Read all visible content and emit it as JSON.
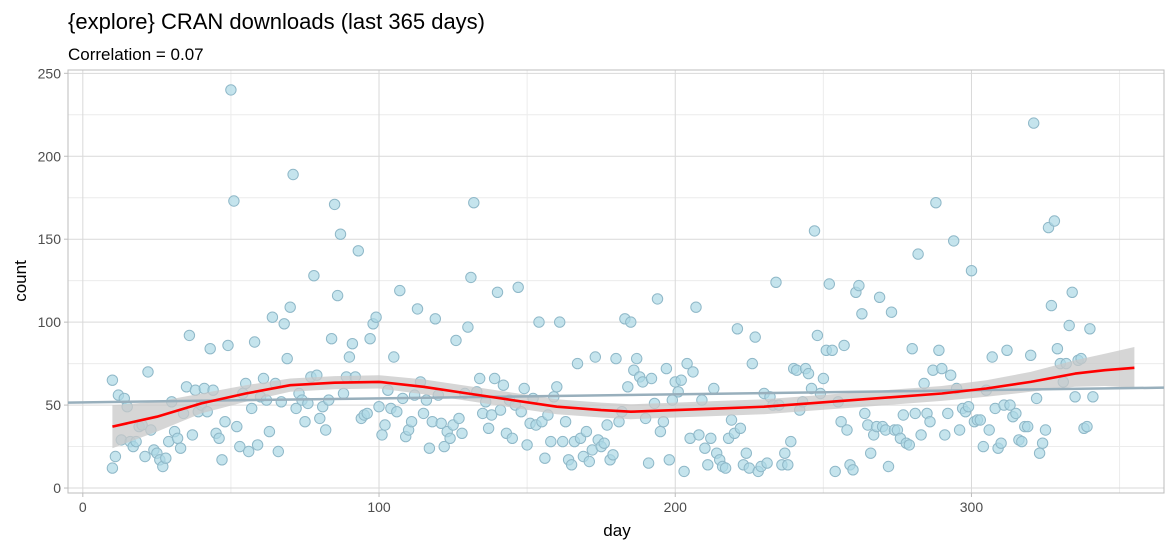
{
  "colors": {
    "background": "#ffffff",
    "grid_major": "#d9d9d9",
    "grid_minor": "#ececec",
    "point_fill": "#add8e6",
    "point_stroke": "#8fb8c8",
    "smooth_line": "#ff0000",
    "confidence_band": "#c8c8c8",
    "regression_line": "#98afbc",
    "panel_border": "#bdbdbd"
  },
  "chart_data": {
    "type": "scatter",
    "title": "{explore} CRAN downloads (last 365 days)",
    "subtitle": "Correlation = 0.07",
    "xlabel": "day",
    "ylabel": "count",
    "xlim": [
      -5,
      365
    ],
    "ylim": [
      -3,
      252
    ],
    "xticks": [
      0,
      100,
      200,
      300
    ],
    "yticks": [
      0,
      50,
      100,
      150,
      200,
      250
    ],
    "grid": true,
    "legend": "none",
    "points": [
      [
        10,
        65
      ],
      [
        10,
        12
      ],
      [
        11,
        19
      ],
      [
        12,
        56
      ],
      [
        13,
        29
      ],
      [
        14,
        54
      ],
      [
        15,
        49
      ],
      [
        16,
        28
      ],
      [
        17,
        25
      ],
      [
        18,
        28
      ],
      [
        19,
        37
      ],
      [
        20,
        38
      ],
      [
        21,
        19
      ],
      [
        22,
        70
      ],
      [
        23,
        35
      ],
      [
        24,
        23
      ],
      [
        25,
        21
      ],
      [
        26,
        17
      ],
      [
        27,
        13
      ],
      [
        28,
        18
      ],
      [
        29,
        28
      ],
      [
        30,
        52
      ],
      [
        31,
        34
      ],
      [
        32,
        30
      ],
      [
        33,
        24
      ],
      [
        34,
        45
      ],
      [
        35,
        61
      ],
      [
        36,
        92
      ],
      [
        37,
        32
      ],
      [
        38,
        59
      ],
      [
        39,
        46
      ],
      [
        40,
        50
      ],
      [
        41,
        60
      ],
      [
        42,
        46
      ],
      [
        43,
        84
      ],
      [
        44,
        59
      ],
      [
        45,
        33
      ],
      [
        46,
        30
      ],
      [
        47,
        17
      ],
      [
        48,
        40
      ],
      [
        49,
        86
      ],
      [
        50,
        240
      ],
      [
        51,
        173
      ],
      [
        52,
        37
      ],
      [
        53,
        25
      ],
      [
        54,
        57
      ],
      [
        55,
        63
      ],
      [
        56,
        22
      ],
      [
        57,
        48
      ],
      [
        58,
        88
      ],
      [
        59,
        26
      ],
      [
        60,
        55
      ],
      [
        61,
        66
      ],
      [
        62,
        53
      ],
      [
        63,
        34
      ],
      [
        64,
        103
      ],
      [
        65,
        63
      ],
      [
        66,
        22
      ],
      [
        67,
        52
      ],
      [
        68,
        99
      ],
      [
        69,
        78
      ],
      [
        70,
        109
      ],
      [
        71,
        189
      ],
      [
        72,
        48
      ],
      [
        73,
        57
      ],
      [
        74,
        53
      ],
      [
        75,
        40
      ],
      [
        76,
        51
      ],
      [
        77,
        67
      ],
      [
        78,
        128
      ],
      [
        79,
        68
      ],
      [
        80,
        42
      ],
      [
        81,
        49
      ],
      [
        82,
        35
      ],
      [
        83,
        53
      ],
      [
        84,
        90
      ],
      [
        85,
        171
      ],
      [
        86,
        116
      ],
      [
        87,
        153
      ],
      [
        88,
        57
      ],
      [
        89,
        67
      ],
      [
        90,
        79
      ],
      [
        91,
        87
      ],
      [
        92,
        67
      ],
      [
        93,
        143
      ],
      [
        94,
        42
      ],
      [
        95,
        44
      ],
      [
        96,
        45
      ],
      [
        97,
        90
      ],
      [
        98,
        99
      ],
      [
        99,
        103
      ],
      [
        100,
        49
      ],
      [
        101,
        32
      ],
      [
        102,
        38
      ],
      [
        103,
        59
      ],
      [
        104,
        48
      ],
      [
        105,
        79
      ],
      [
        106,
        46
      ],
      [
        107,
        119
      ],
      [
        108,
        54
      ],
      [
        109,
        31
      ],
      [
        110,
        35
      ],
      [
        111,
        40
      ],
      [
        112,
        56
      ],
      [
        113,
        108
      ],
      [
        114,
        64
      ],
      [
        115,
        45
      ],
      [
        116,
        53
      ],
      [
        117,
        24
      ],
      [
        118,
        40
      ],
      [
        119,
        102
      ],
      [
        120,
        56
      ],
      [
        121,
        39
      ],
      [
        122,
        25
      ],
      [
        123,
        34
      ],
      [
        124,
        30
      ],
      [
        125,
        38
      ],
      [
        126,
        89
      ],
      [
        127,
        42
      ],
      [
        128,
        33
      ],
      [
        129,
        57
      ],
      [
        130,
        97
      ],
      [
        131,
        127
      ],
      [
        132,
        172
      ],
      [
        133,
        58
      ],
      [
        134,
        66
      ],
      [
        135,
        45
      ],
      [
        136,
        52
      ],
      [
        137,
        36
      ],
      [
        138,
        44
      ],
      [
        139,
        66
      ],
      [
        140,
        118
      ],
      [
        141,
        47
      ],
      [
        142,
        62
      ],
      [
        143,
        33
      ],
      [
        144,
        53
      ],
      [
        145,
        30
      ],
      [
        146,
        50
      ],
      [
        147,
        121
      ],
      [
        148,
        46
      ],
      [
        149,
        60
      ],
      [
        150,
        26
      ],
      [
        151,
        39
      ],
      [
        152,
        54
      ],
      [
        153,
        38
      ],
      [
        154,
        100
      ],
      [
        155,
        40
      ],
      [
        156,
        18
      ],
      [
        157,
        44
      ],
      [
        158,
        28
      ],
      [
        159,
        55
      ],
      [
        160,
        61
      ],
      [
        161,
        100
      ],
      [
        162,
        28
      ],
      [
        163,
        40
      ],
      [
        164,
        17
      ],
      [
        165,
        14
      ],
      [
        166,
        28
      ],
      [
        167,
        75
      ],
      [
        168,
        30
      ],
      [
        169,
        19
      ],
      [
        170,
        34
      ],
      [
        171,
        16
      ],
      [
        172,
        23
      ],
      [
        173,
        79
      ],
      [
        174,
        29
      ],
      [
        175,
        25
      ],
      [
        176,
        27
      ],
      [
        177,
        38
      ],
      [
        178,
        17
      ],
      [
        179,
        20
      ],
      [
        180,
        78
      ],
      [
        181,
        40
      ],
      [
        182,
        46
      ],
      [
        183,
        102
      ],
      [
        184,
        61
      ],
      [
        185,
        100
      ],
      [
        186,
        71
      ],
      [
        187,
        78
      ],
      [
        188,
        67
      ],
      [
        189,
        64
      ],
      [
        190,
        42
      ],
      [
        191,
        15
      ],
      [
        192,
        66
      ],
      [
        193,
        51
      ],
      [
        194,
        114
      ],
      [
        195,
        34
      ],
      [
        196,
        40
      ],
      [
        197,
        72
      ],
      [
        198,
        17
      ],
      [
        199,
        53
      ],
      [
        200,
        64
      ],
      [
        201,
        58
      ],
      [
        202,
        65
      ],
      [
        203,
        10
      ],
      [
        204,
        75
      ],
      [
        205,
        30
      ],
      [
        206,
        70
      ],
      [
        207,
        109
      ],
      [
        208,
        32
      ],
      [
        209,
        53
      ],
      [
        210,
        24
      ],
      [
        211,
        14
      ],
      [
        212,
        30
      ],
      [
        213,
        60
      ],
      [
        214,
        21
      ],
      [
        215,
        17
      ],
      [
        216,
        13
      ],
      [
        217,
        12
      ],
      [
        218,
        30
      ],
      [
        219,
        41
      ],
      [
        220,
        33
      ],
      [
        221,
        96
      ],
      [
        222,
        36
      ],
      [
        223,
        14
      ],
      [
        224,
        21
      ],
      [
        225,
        12
      ],
      [
        226,
        75
      ],
      [
        227,
        91
      ],
      [
        228,
        10
      ],
      [
        229,
        13
      ],
      [
        230,
        57
      ],
      [
        231,
        15
      ],
      [
        232,
        55
      ],
      [
        233,
        50
      ],
      [
        234,
        124
      ],
      [
        235,
        50
      ],
      [
        236,
        14
      ],
      [
        237,
        21
      ],
      [
        238,
        14
      ],
      [
        239,
        28
      ],
      [
        240,
        72
      ],
      [
        241,
        71
      ],
      [
        242,
        47
      ],
      [
        243,
        52
      ],
      [
        244,
        72
      ],
      [
        245,
        69
      ],
      [
        246,
        60
      ],
      [
        247,
        155
      ],
      [
        248,
        92
      ],
      [
        249,
        57
      ],
      [
        250,
        66
      ],
      [
        251,
        83
      ],
      [
        252,
        123
      ],
      [
        253,
        83
      ],
      [
        254,
        10
      ],
      [
        255,
        52
      ],
      [
        256,
        40
      ],
      [
        257,
        86
      ],
      [
        258,
        35
      ],
      [
        259,
        14
      ],
      [
        260,
        11
      ],
      [
        261,
        118
      ],
      [
        262,
        122
      ],
      [
        263,
        105
      ],
      [
        264,
        45
      ],
      [
        265,
        38
      ],
      [
        266,
        21
      ],
      [
        267,
        32
      ],
      [
        268,
        37
      ],
      [
        269,
        115
      ],
      [
        270,
        37
      ],
      [
        271,
        35
      ],
      [
        272,
        13
      ],
      [
        273,
        106
      ],
      [
        274,
        35
      ],
      [
        275,
        35
      ],
      [
        276,
        30
      ],
      [
        277,
        44
      ],
      [
        278,
        27
      ],
      [
        279,
        26
      ],
      [
        280,
        84
      ],
      [
        281,
        45
      ],
      [
        282,
        141
      ],
      [
        283,
        32
      ],
      [
        284,
        63
      ],
      [
        285,
        45
      ],
      [
        286,
        40
      ],
      [
        287,
        71
      ],
      [
        288,
        172
      ],
      [
        289,
        83
      ],
      [
        290,
        72
      ],
      [
        291,
        32
      ],
      [
        292,
        45
      ],
      [
        293,
        68
      ],
      [
        294,
        149
      ],
      [
        295,
        60
      ],
      [
        296,
        35
      ],
      [
        297,
        48
      ],
      [
        298,
        46
      ],
      [
        299,
        49
      ],
      [
        300,
        131
      ],
      [
        301,
        40
      ],
      [
        302,
        41
      ],
      [
        303,
        41
      ],
      [
        304,
        25
      ],
      [
        305,
        59
      ],
      [
        306,
        35
      ],
      [
        307,
        79
      ],
      [
        308,
        48
      ],
      [
        309,
        24
      ],
      [
        310,
        27
      ],
      [
        311,
        50
      ],
      [
        312,
        83
      ],
      [
        313,
        50
      ],
      [
        314,
        43
      ],
      [
        315,
        45
      ],
      [
        316,
        29
      ],
      [
        317,
        28
      ],
      [
        318,
        37
      ],
      [
        319,
        37
      ],
      [
        320,
        80
      ],
      [
        321,
        220
      ],
      [
        322,
        54
      ],
      [
        323,
        21
      ],
      [
        324,
        27
      ],
      [
        325,
        35
      ],
      [
        326,
        157
      ],
      [
        327,
        110
      ],
      [
        328,
        161
      ],
      [
        329,
        84
      ],
      [
        330,
        75
      ],
      [
        331,
        64
      ],
      [
        332,
        75
      ],
      [
        333,
        98
      ],
      [
        334,
        118
      ],
      [
        335,
        55
      ],
      [
        336,
        77
      ],
      [
        337,
        78
      ],
      [
        338,
        36
      ],
      [
        339,
        37
      ],
      [
        340,
        96
      ],
      [
        341,
        55
      ]
    ],
    "smooth_fit": [
      [
        10,
        37
      ],
      [
        25,
        43
      ],
      [
        40,
        51
      ],
      [
        55,
        57
      ],
      [
        70,
        62
      ],
      [
        85,
        63.5
      ],
      [
        100,
        64
      ],
      [
        115,
        61
      ],
      [
        130,
        57
      ],
      [
        145,
        53
      ],
      [
        160,
        49
      ],
      [
        175,
        47
      ],
      [
        185,
        46
      ],
      [
        200,
        47
      ],
      [
        215,
        48
      ],
      [
        230,
        49
      ],
      [
        245,
        51
      ],
      [
        260,
        53
      ],
      [
        275,
        55
      ],
      [
        290,
        57
      ],
      [
        305,
        60
      ],
      [
        320,
        64
      ],
      [
        335,
        69
      ],
      [
        345,
        71
      ],
      [
        355,
        72.5
      ]
    ],
    "confidence_band_upper": [
      [
        10,
        50
      ],
      [
        25,
        52
      ],
      [
        40,
        57
      ],
      [
        55,
        62
      ],
      [
        70,
        66
      ],
      [
        85,
        67.5
      ],
      [
        100,
        68
      ],
      [
        115,
        65.5
      ],
      [
        130,
        61.5
      ],
      [
        145,
        57.5
      ],
      [
        160,
        53.5
      ],
      [
        175,
        51.5
      ],
      [
        185,
        50.5
      ],
      [
        200,
        51.5
      ],
      [
        215,
        52.5
      ],
      [
        230,
        53.5
      ],
      [
        245,
        55.5
      ],
      [
        260,
        57.5
      ],
      [
        275,
        59.5
      ],
      [
        290,
        61.5
      ],
      [
        305,
        65
      ],
      [
        320,
        70
      ],
      [
        335,
        77
      ],
      [
        345,
        81
      ],
      [
        355,
        85
      ]
    ],
    "confidence_band_lower": [
      [
        10,
        24
      ],
      [
        25,
        34
      ],
      [
        40,
        45
      ],
      [
        55,
        52
      ],
      [
        70,
        58
      ],
      [
        85,
        59.5
      ],
      [
        100,
        60
      ],
      [
        115,
        56.5
      ],
      [
        130,
        52.5
      ],
      [
        145,
        48.5
      ],
      [
        160,
        44.5
      ],
      [
        175,
        42.5
      ],
      [
        185,
        41.5
      ],
      [
        200,
        42.5
      ],
      [
        215,
        43.5
      ],
      [
        230,
        44.5
      ],
      [
        245,
        46.5
      ],
      [
        260,
        48.5
      ],
      [
        275,
        50.5
      ],
      [
        290,
        52.5
      ],
      [
        305,
        55
      ],
      [
        320,
        58
      ],
      [
        335,
        61
      ],
      [
        345,
        61.5
      ],
      [
        355,
        60.5
      ]
    ],
    "regression_line": [
      [
        -5,
        51.5
      ],
      [
        365,
        60.5
      ]
    ]
  }
}
